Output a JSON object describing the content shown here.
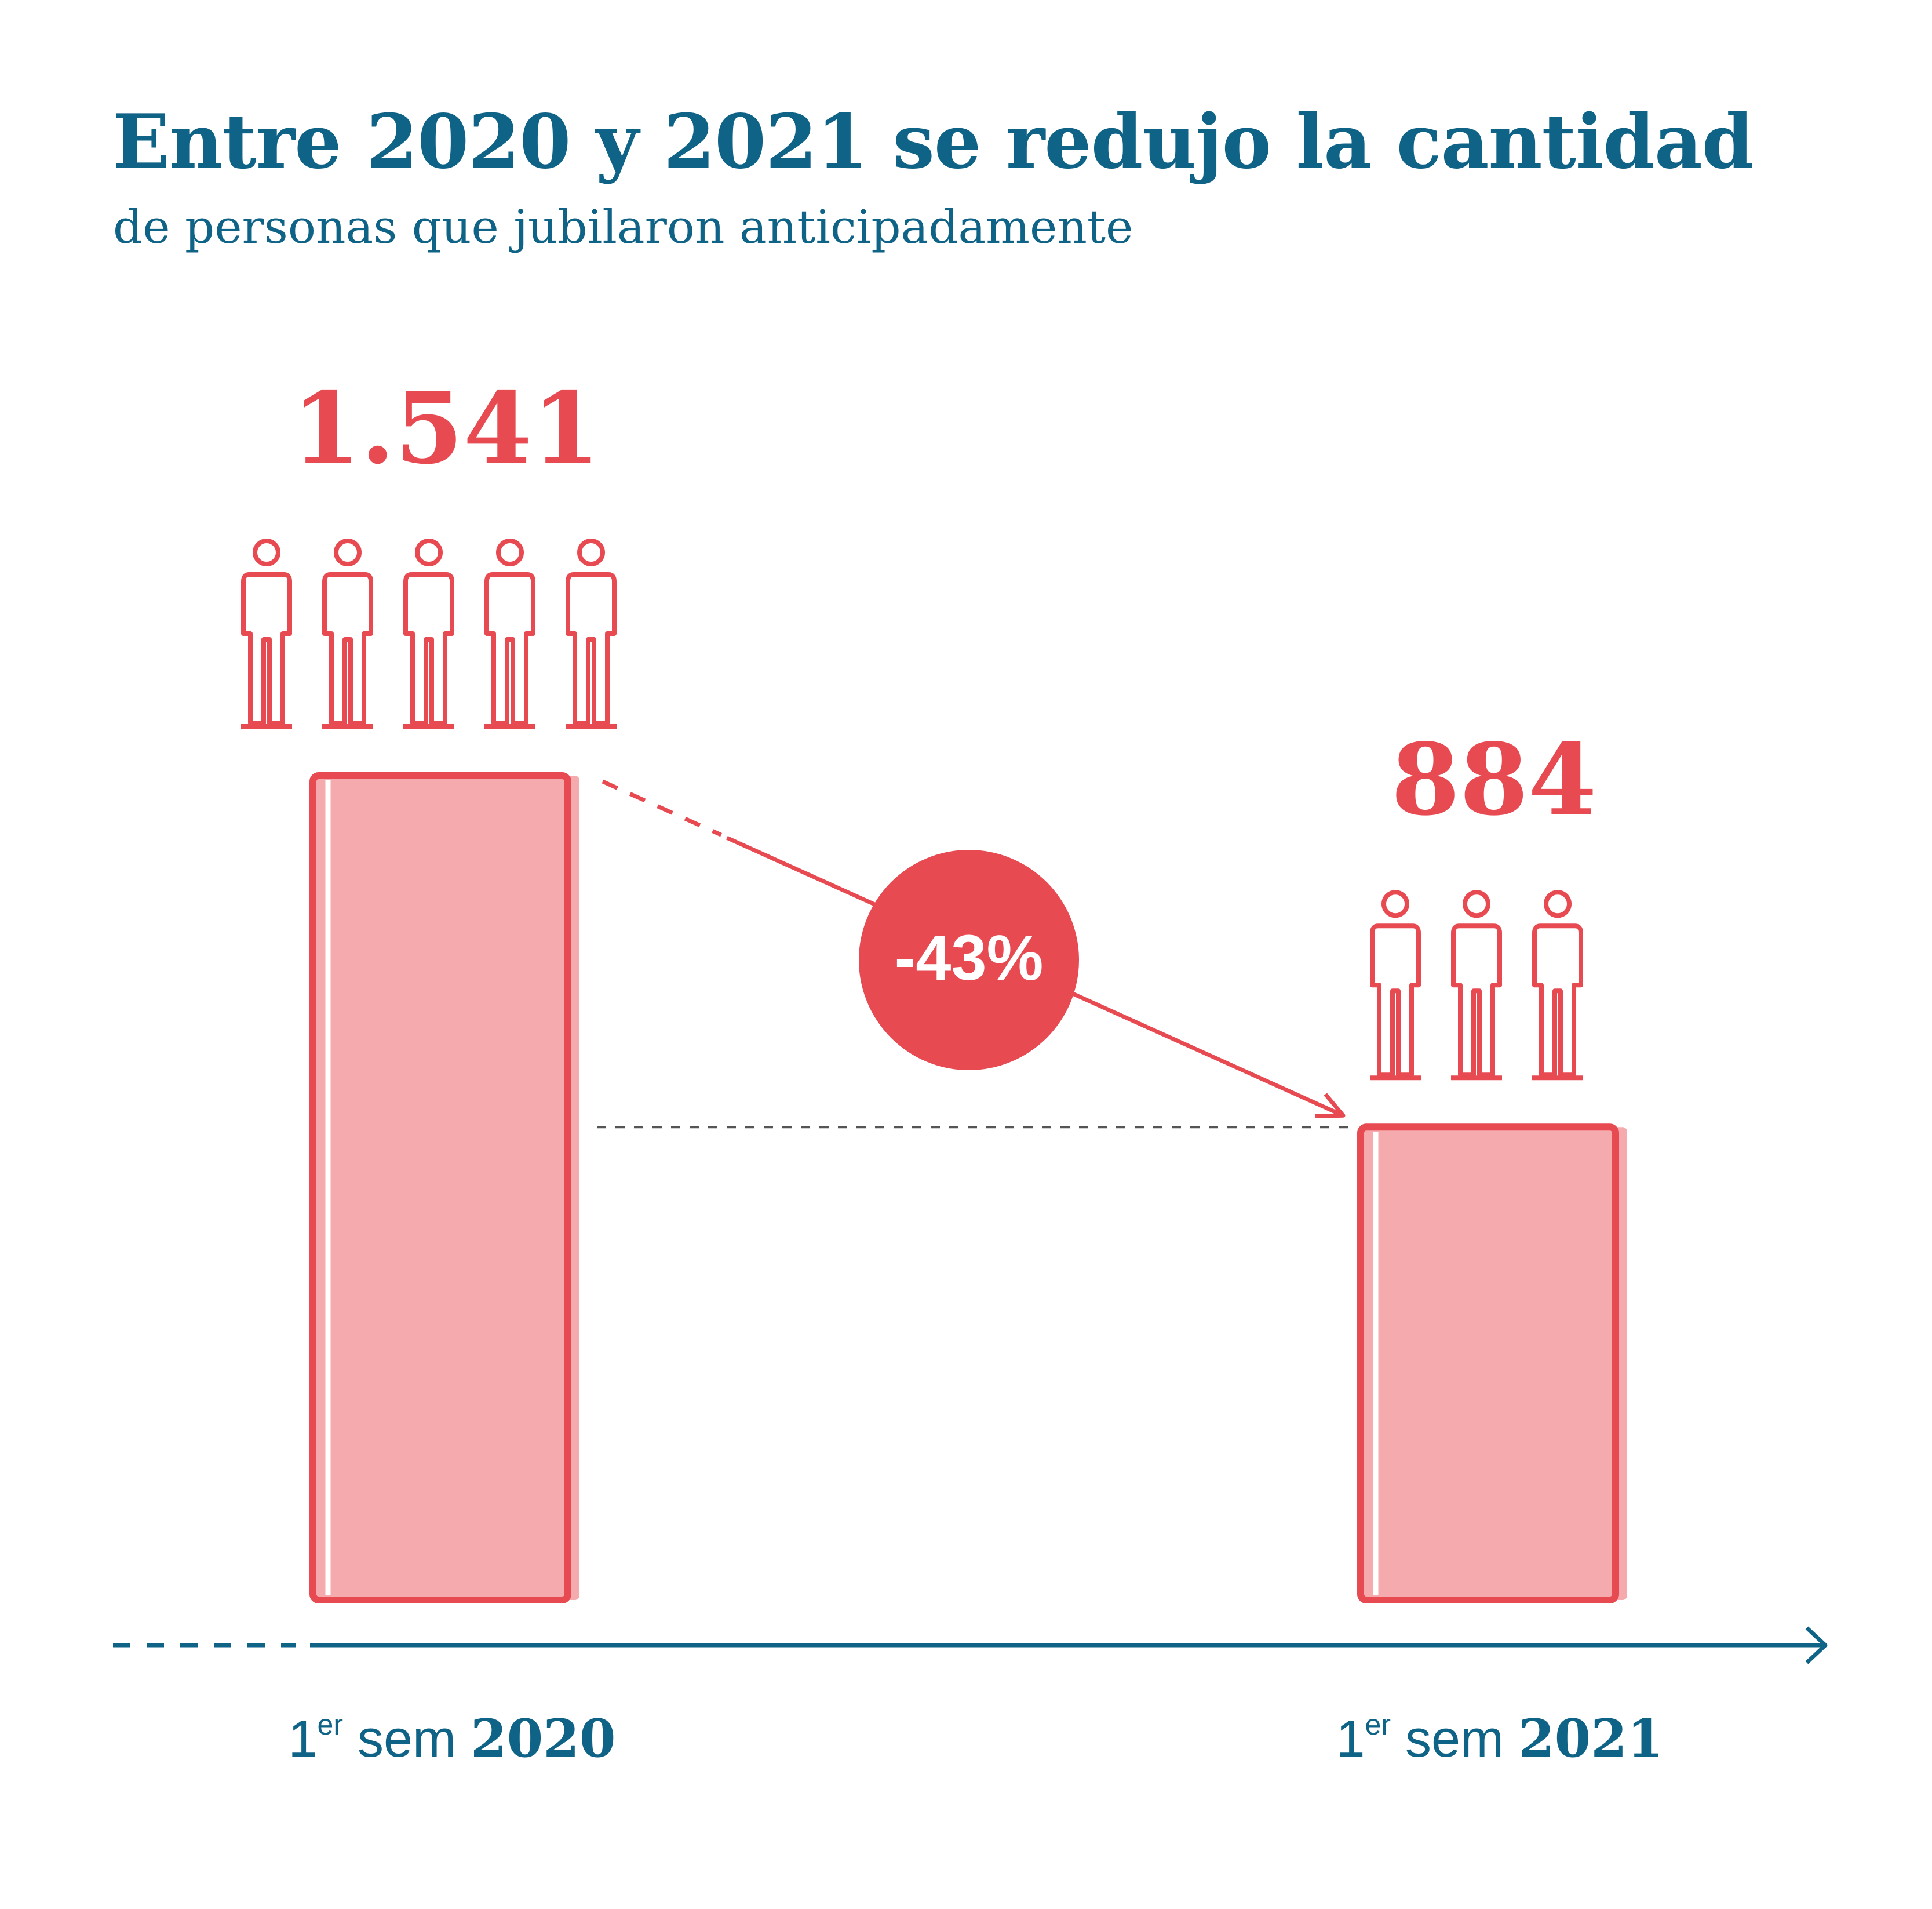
{
  "title": "Entre 2020 y 2021 se redujo la cantidad",
  "subtitle": "de personas que jubilaron anticipadamente",
  "colors": {
    "accent": "#e84a52",
    "bar_fill": "#f5abad",
    "bar_shadow": "#f5abad",
    "axis": "#0f6387",
    "text": "#0f6387"
  },
  "chart_data": {
    "type": "bar",
    "categories": [
      "1er sem 2020",
      "1er sem 2021"
    ],
    "category_labels": [
      {
        "prefix": "1",
        "superscript": "er",
        "middle": " sem ",
        "year": "2020"
      },
      {
        "prefix": "1",
        "superscript": "er",
        "middle": " sem ",
        "year": "2021"
      }
    ],
    "values": [
      1541,
      884
    ],
    "value_labels": [
      "1.541",
      "884"
    ],
    "change_label": "-43%",
    "icons_per_bar": [
      5,
      3
    ],
    "icon_name": "person-icon",
    "title": "Entre 2020 y 2021 se redujo la cantidad",
    "subtitle": "de personas que jubilaron anticipadamente",
    "xlabel": "",
    "ylabel": "",
    "ylim": [
      0,
      1541
    ],
    "grid": false,
    "legend": "none"
  }
}
